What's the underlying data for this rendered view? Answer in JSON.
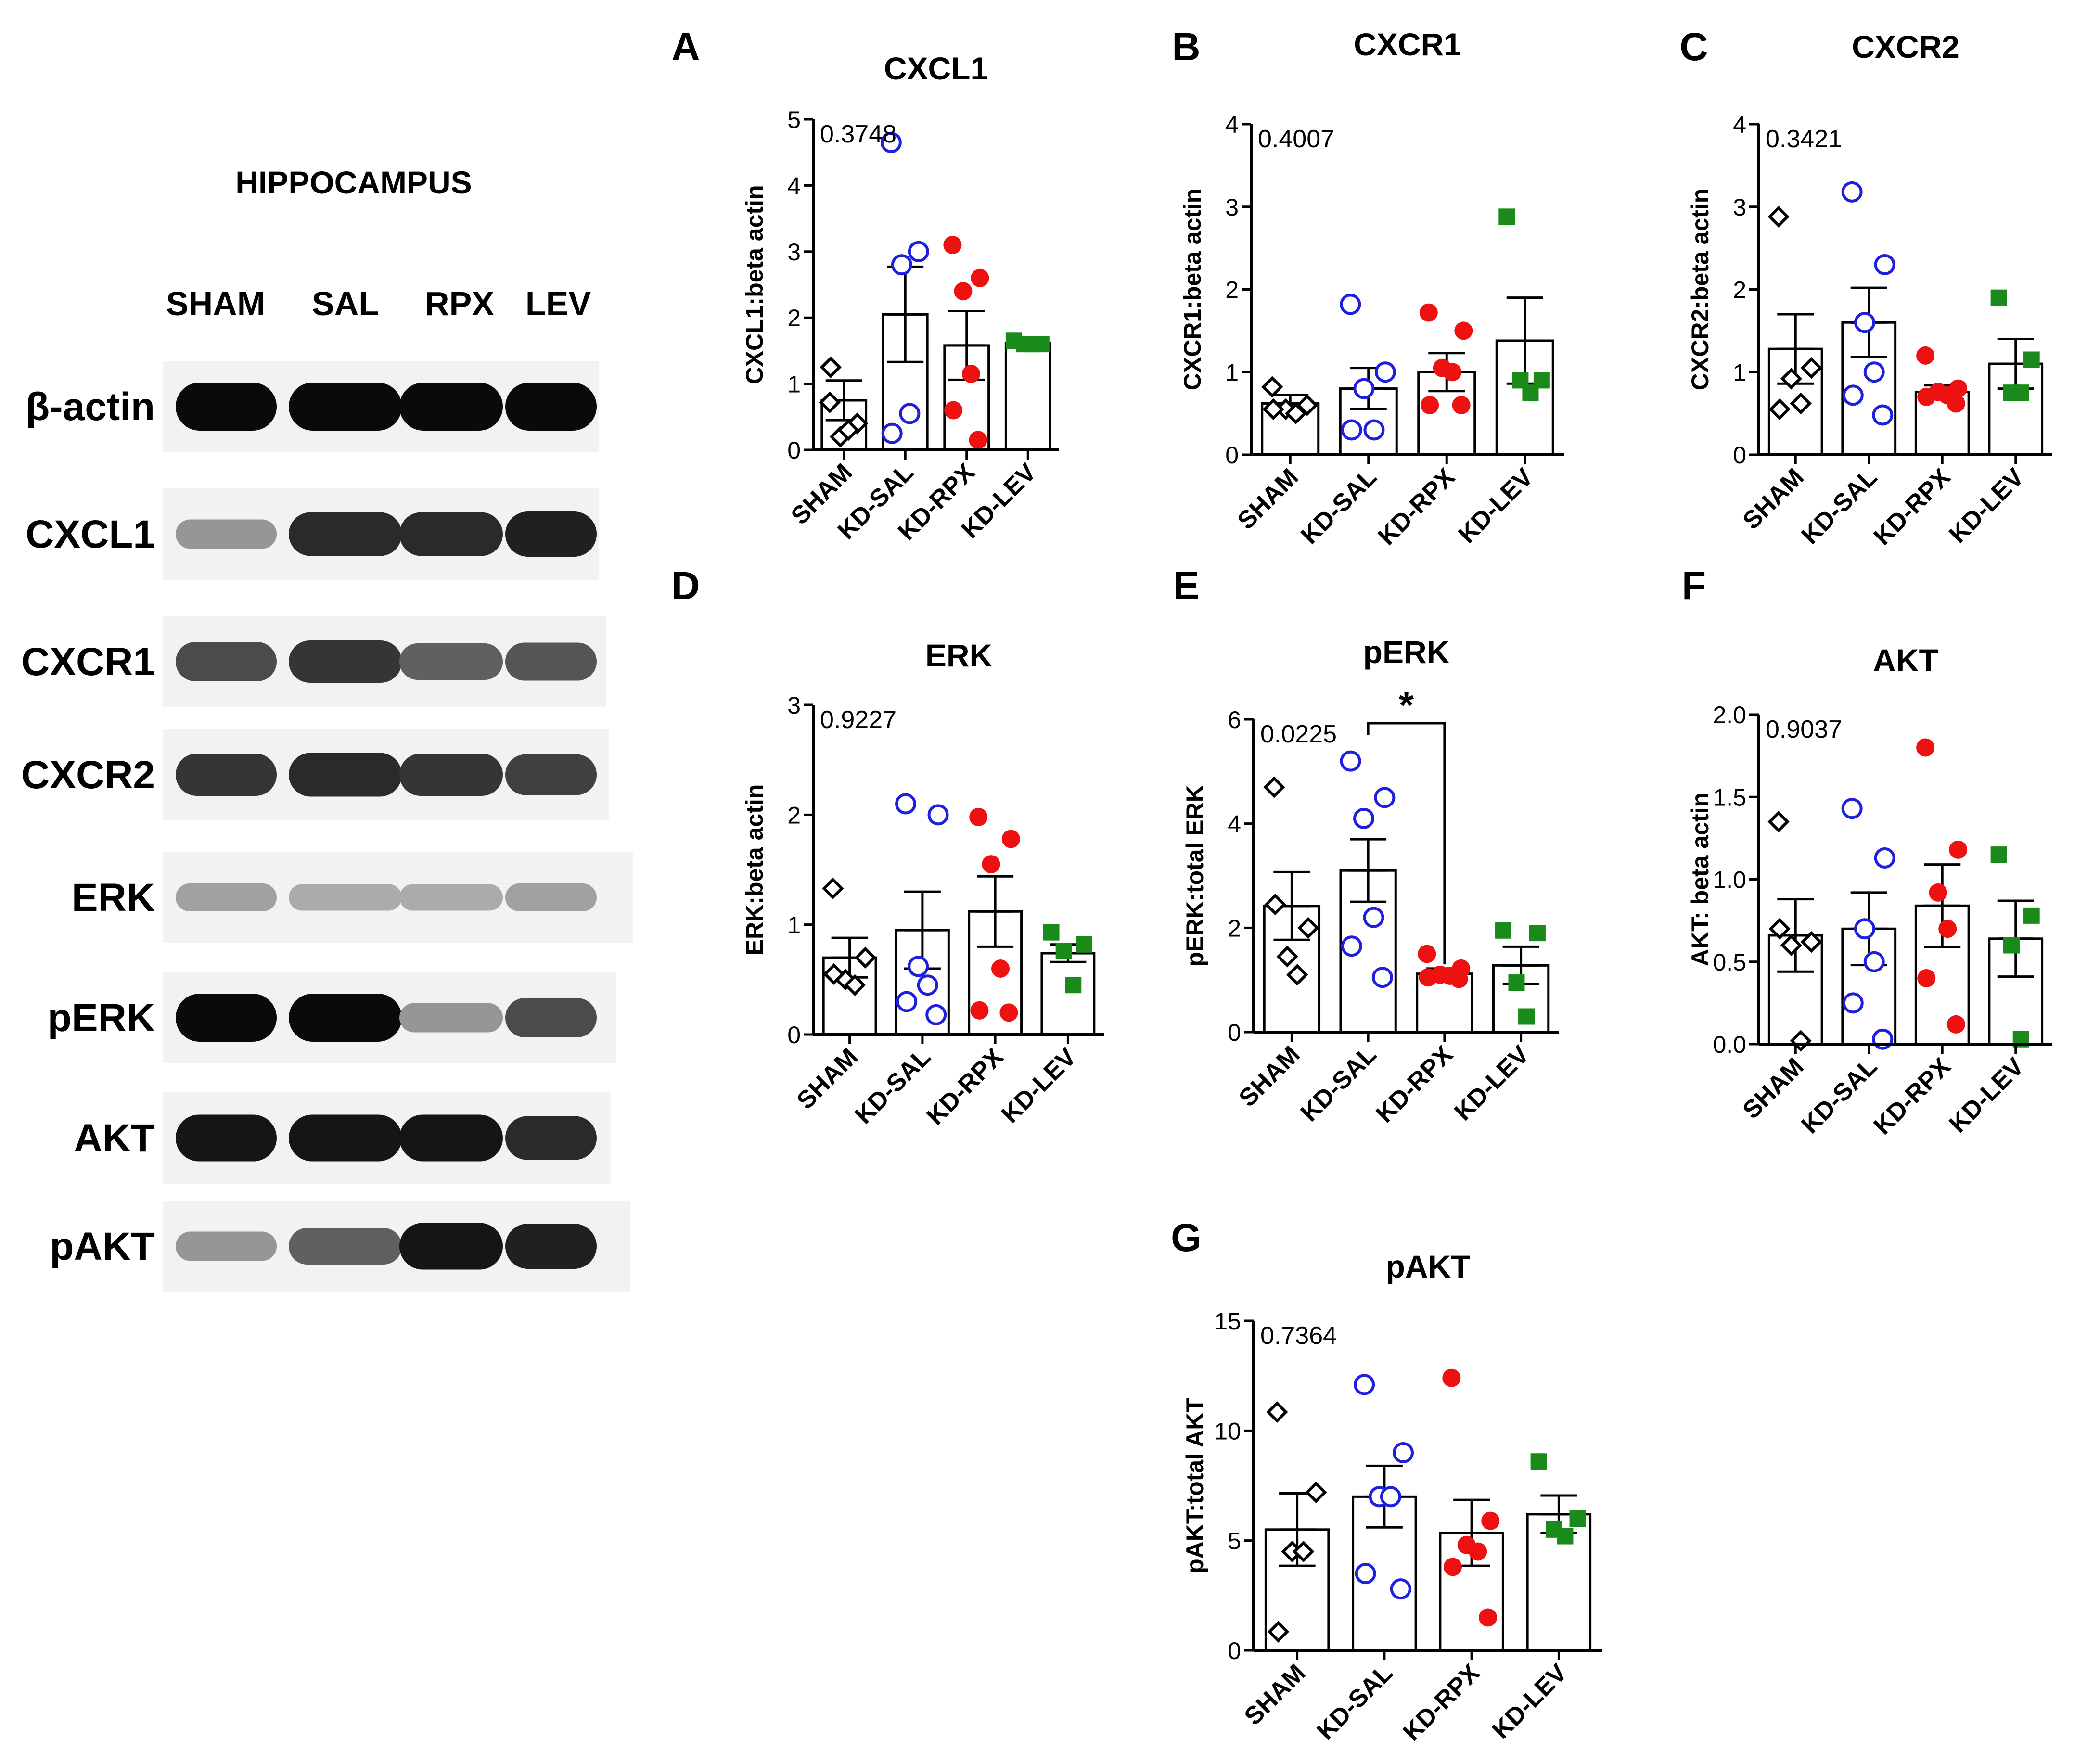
{
  "blot": {
    "title": "HIPPOCAMPUS",
    "lanes": [
      "SHAM",
      "SAL",
      "RPX",
      "LEV"
    ],
    "rows": [
      {
        "label": "β-actin",
        "intensity": [
          1.0,
          1.0,
          1.0,
          1.0
        ]
      },
      {
        "label": "CXCL1",
        "intensity": [
          0.35,
          0.85,
          0.85,
          0.9
        ]
      },
      {
        "label": "CXCR1",
        "intensity": [
          0.7,
          0.8,
          0.6,
          0.65
        ]
      },
      {
        "label": "CXCR2",
        "intensity": [
          0.8,
          0.85,
          0.8,
          0.75
        ]
      },
      {
        "label": "ERK",
        "intensity": [
          0.3,
          0.25,
          0.25,
          0.3
        ]
      },
      {
        "label": "pERK",
        "intensity": [
          1.0,
          1.0,
          0.35,
          0.7
        ]
      },
      {
        "label": "AKT",
        "intensity": [
          0.95,
          0.95,
          0.95,
          0.85
        ]
      },
      {
        "label": "pAKT",
        "intensity": [
          0.35,
          0.6,
          0.95,
          0.9
        ]
      }
    ]
  },
  "colors": {
    "SHAM": "#000000",
    "KD-SAL": "#1f1fe0",
    "KD-RPX": "#ee1111",
    "KD-LEV": "#1a8a1a"
  },
  "chart_data": [
    {
      "panel": "A",
      "type": "bar",
      "title": "CXCL1",
      "ylabel": "CXCL1:beta actin",
      "pvalue": "0.3748",
      "ylim": [
        0,
        5
      ],
      "yticks": [
        "0",
        "1",
        "2",
        "3",
        "4",
        "5"
      ],
      "categories": [
        "SHAM",
        "KD-SAL",
        "KD-RPX",
        "KD-LEV"
      ],
      "means": [
        0.75,
        2.05,
        1.58,
        1.62
      ],
      "sem": [
        0.3,
        0.72,
        0.52,
        0.04
      ],
      "points": [
        [
          0.72,
          0.4,
          0.2,
          0.3,
          1.25
        ],
        [
          4.65,
          3.0,
          2.8,
          0.55,
          0.25
        ],
        [
          3.1,
          2.6,
          2.4,
          1.15,
          0.6,
          0.15
        ],
        [
          1.65,
          1.6,
          1.6,
          1.6
        ]
      ],
      "markers": [
        "diamond",
        "circle",
        "dot",
        "square"
      ]
    },
    {
      "panel": "B",
      "type": "bar",
      "title": "CXCR1",
      "ylabel": "CXCR1:beta actin",
      "pvalue": "0.4007",
      "ylim": [
        0,
        4
      ],
      "yticks": [
        "0",
        "1",
        "2",
        "3",
        "4"
      ],
      "categories": [
        "SHAM",
        "KD-SAL",
        "KD-RPX",
        "KD-LEV"
      ],
      "means": [
        0.62,
        0.8,
        1.0,
        1.38
      ],
      "sem": [
        0.1,
        0.25,
        0.23,
        0.52
      ],
      "points": [
        [
          0.82,
          0.6,
          0.55,
          0.5,
          0.55
        ],
        [
          1.82,
          1.0,
          0.8,
          0.3,
          0.3
        ],
        [
          1.72,
          1.5,
          1.05,
          1.0,
          0.6,
          0.6
        ],
        [
          2.88,
          0.9,
          0.9,
          0.75
        ]
      ],
      "markers": [
        "diamond",
        "circle",
        "dot",
        "square"
      ]
    },
    {
      "panel": "C",
      "type": "bar",
      "title": "CXCR2",
      "ylabel": "CXCR2:beta actin",
      "pvalue": "0.3421",
      "ylim": [
        0,
        4
      ],
      "yticks": [
        "0",
        "1",
        "2",
        "3",
        "4"
      ],
      "categories": [
        "SHAM",
        "KD-SAL",
        "KD-RPX",
        "KD-LEV"
      ],
      "means": [
        1.28,
        1.6,
        0.76,
        1.1
      ],
      "sem": [
        0.42,
        0.42,
        0.08,
        0.3
      ],
      "points": [
        [
          2.88,
          1.05,
          0.92,
          0.62,
          0.55
        ],
        [
          3.18,
          2.3,
          1.6,
          1.0,
          0.72,
          0.48
        ],
        [
          1.2,
          0.8,
          0.76,
          0.72,
          0.7,
          0.62
        ],
        [
          1.9,
          1.15,
          0.75,
          0.75
        ]
      ],
      "markers": [
        "diamond",
        "circle",
        "dot",
        "square"
      ]
    },
    {
      "panel": "D",
      "type": "bar",
      "title": "ERK",
      "ylabel": "ERK:beta actin",
      "pvalue": "0.9227",
      "ylim": [
        0,
        3
      ],
      "yticks": [
        "0",
        "1",
        "2",
        "3"
      ],
      "categories": [
        "SHAM",
        "KD-SAL",
        "KD-RPX",
        "KD-LEV"
      ],
      "means": [
        0.7,
        0.95,
        1.12,
        0.74
      ],
      "sem": [
        0.18,
        0.35,
        0.32,
        0.08
      ],
      "points": [
        [
          1.33,
          0.7,
          0.5,
          0.45,
          0.55
        ],
        [
          2.1,
          2.0,
          0.62,
          0.45,
          0.3,
          0.18
        ],
        [
          1.98,
          1.78,
          1.55,
          0.6,
          0.22,
          0.2
        ],
        [
          0.93,
          0.82,
          0.76,
          0.45
        ]
      ],
      "markers": [
        "diamond",
        "circle",
        "dot",
        "square"
      ]
    },
    {
      "panel": "E",
      "type": "bar",
      "title": "pERK",
      "ylabel": "pERK:total ERK",
      "pvalue": "0.0225",
      "ylim": [
        0,
        6
      ],
      "yticks": [
        "0",
        "2",
        "4",
        "6"
      ],
      "categories": [
        "SHAM",
        "KD-SAL",
        "KD-RPX",
        "KD-LEV"
      ],
      "means": [
        2.42,
        3.1,
        1.12,
        1.28
      ],
      "sem": [
        0.65,
        0.6,
        0.1,
        0.36
      ],
      "points": [
        [
          4.7,
          2.0,
          1.45,
          1.1,
          2.45
        ],
        [
          5.2,
          4.5,
          4.1,
          2.2,
          1.65,
          1.05
        ],
        [
          1.5,
          1.22,
          1.1,
          1.08,
          1.05,
          1.02
        ],
        [
          1.95,
          1.9,
          0.95,
          0.3
        ]
      ],
      "markers": [
        "diamond",
        "circle",
        "dot",
        "square"
      ],
      "significance": {
        "from": 1,
        "to": 2,
        "label": "*"
      }
    },
    {
      "panel": "F",
      "type": "bar",
      "title": "AKT",
      "ylabel": "AKT: beta actin",
      "pvalue": "0.9037",
      "ylim": [
        0,
        2
      ],
      "yticks": [
        "0.0",
        "0.5",
        "1.0",
        "1.5",
        "2.0"
      ],
      "categories": [
        "SHAM",
        "KD-SAL",
        "KD-RPX",
        "KD-LEV"
      ],
      "means": [
        0.66,
        0.7,
        0.84,
        0.64
      ],
      "sem": [
        0.22,
        0.22,
        0.25,
        0.23
      ],
      "points": [
        [
          1.35,
          0.62,
          0.6,
          0.02,
          0.7
        ],
        [
          1.43,
          1.13,
          0.7,
          0.5,
          0.25,
          0.03
        ],
        [
          1.8,
          1.18,
          0.92,
          0.7,
          0.4,
          0.12
        ],
        [
          1.15,
          0.78,
          0.6,
          0.03
        ]
      ],
      "markers": [
        "diamond",
        "circle",
        "dot",
        "square"
      ]
    },
    {
      "panel": "G",
      "type": "bar",
      "title": "pAKT",
      "ylabel": "pAKT:total AKT",
      "pvalue": "0.7364",
      "ylim": [
        0,
        15
      ],
      "yticks": [
        "0",
        "5",
        "10",
        "15"
      ],
      "categories": [
        "SHAM",
        "KD-SAL",
        "KD-RPX",
        "KD-LEV"
      ],
      "means": [
        5.5,
        7.0,
        5.35,
        6.2
      ],
      "sem": [
        1.65,
        1.4,
        1.5,
        0.85
      ],
      "points": [
        [
          10.85,
          7.2,
          4.5,
          4.5,
          0.85
        ],
        [
          12.1,
          9.0,
          7.0,
          7.0,
          3.5,
          2.8
        ],
        [
          12.4,
          5.9,
          4.8,
          4.5,
          3.8,
          1.5
        ],
        [
          8.6,
          6.0,
          5.5,
          5.2
        ]
      ],
      "markers": [
        "diamond",
        "circle",
        "dot",
        "square"
      ]
    }
  ]
}
